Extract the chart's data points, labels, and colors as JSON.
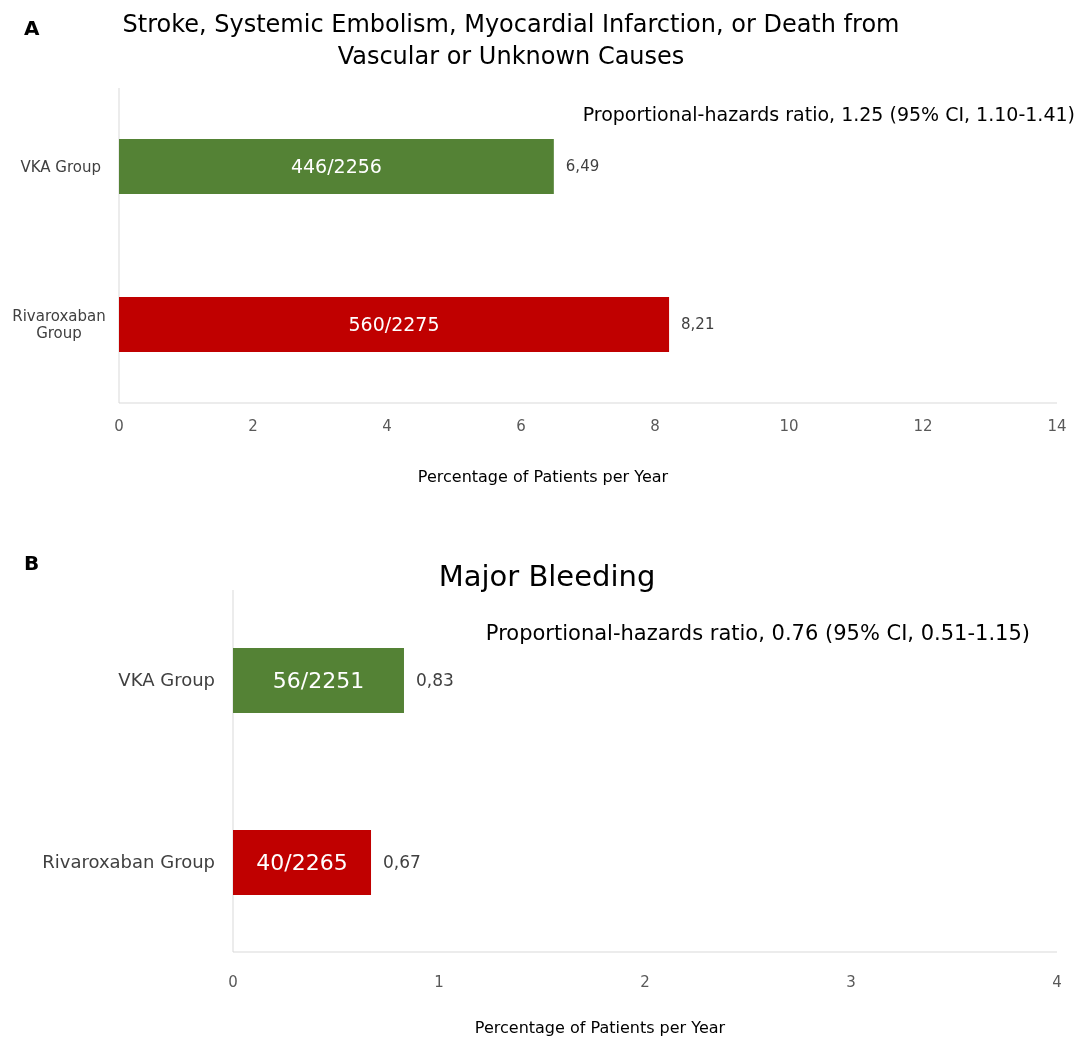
{
  "chart_data": [
    {
      "type": "bar",
      "orientation": "horizontal",
      "title": "Stroke, Systemic Embolism, Myocardial Infarction, or Death from Vascular or Unknown Causes",
      "xlabel": "Percentage of Patients per Year",
      "categories": [
        "VKA Group",
        "Rivaroxaban Group"
      ],
      "values": [
        6.49,
        8.21
      ],
      "colors": [
        "#548235",
        "#c00000"
      ],
      "value_labels": [
        "6,49",
        "8,21"
      ],
      "xlim": [
        0,
        14
      ],
      "xticks": [
        0,
        2,
        4,
        6,
        8,
        10,
        12,
        14
      ],
      "annotations": [
        "A",
        "Proportional-hazards ratio, 1.25 (95% CI, 1.10-1.41)",
        "446/2256",
        "560/2275"
      ]
    },
    {
      "type": "bar",
      "orientation": "horizontal",
      "title": "Major Bleeding",
      "xlabel": "Percentage of Patients per Year",
      "categories": [
        "VKA Group",
        "Rivaroxaban Group"
      ],
      "values": [
        0.83,
        0.67
      ],
      "colors": [
        "#548235",
        "#c00000"
      ],
      "value_labels": [
        "0,83",
        "0,67"
      ],
      "xlim": [
        0,
        4
      ],
      "xticks": [
        0,
        1,
        2,
        3,
        4
      ],
      "annotations": [
        "B",
        "Proportional-hazards ratio, 0.76 (95% CI, 0.51-1.15)",
        "56/2251",
        "40/2265"
      ]
    }
  ]
}
